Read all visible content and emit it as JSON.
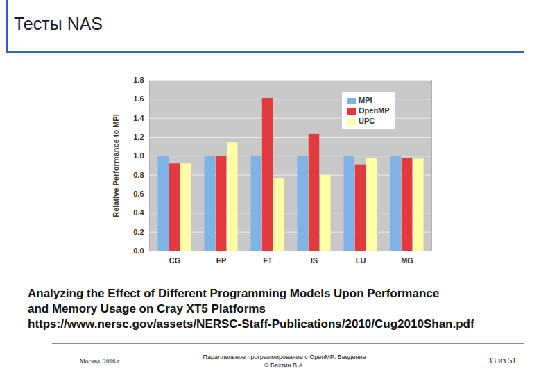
{
  "slide": {
    "title": "Тесты NAS",
    "caption": [
      "Analyzing the Effect of Different Programming Models Upon Performance",
      "and Memory Usage on Cray XT5 Platforms",
      "https://www.nersc.gov/assets/NERSC-Staff-Publications/2010/Cug2010Shan.pdf"
    ],
    "footer": {
      "left": "Москва, 2016 г.",
      "center": [
        "Параллельное программирование с OpenMP: Введение",
        "© Бахтин В.А."
      ],
      "right": "33 из 51"
    }
  },
  "chart_data": {
    "type": "bar",
    "y_label": "Relative Performance to MPI",
    "categories": [
      "CG",
      "EP",
      "FT",
      "IS",
      "LU",
      "MG"
    ],
    "series": [
      {
        "name": "MPI",
        "color": "#7fb2e5",
        "values": [
          1.0,
          1.0,
          1.0,
          1.0,
          1.0,
          1.0
        ]
      },
      {
        "name": "OpenMP",
        "color": "#e23a3f",
        "values": [
          0.92,
          1.0,
          1.61,
          1.23,
          0.91,
          0.98
        ]
      },
      {
        "name": "UPC",
        "color": "#ffffa6",
        "values": [
          0.92,
          1.14,
          0.76,
          0.8,
          0.98,
          0.97
        ]
      }
    ],
    "ylim": [
      0,
      1.8
    ],
    "yticks": [
      {
        "value": 0,
        "label": "0.0"
      },
      {
        "value": 0.2,
        "label": "0.2"
      },
      {
        "value": 0.4,
        "label": "0.4"
      },
      {
        "value": 0.6,
        "label": "0.6"
      },
      {
        "value": 0.8,
        "label": "0.8"
      },
      {
        "value": 1,
        "label": "1.0"
      },
      {
        "value": 1.2,
        "label": "1.2"
      },
      {
        "value": 1.4,
        "label": "1.4"
      },
      {
        "value": 1.6,
        "label": "1.6"
      },
      {
        "value": 1.8,
        "label": "1.8"
      }
    ],
    "grid": true,
    "legend": "upper right"
  }
}
